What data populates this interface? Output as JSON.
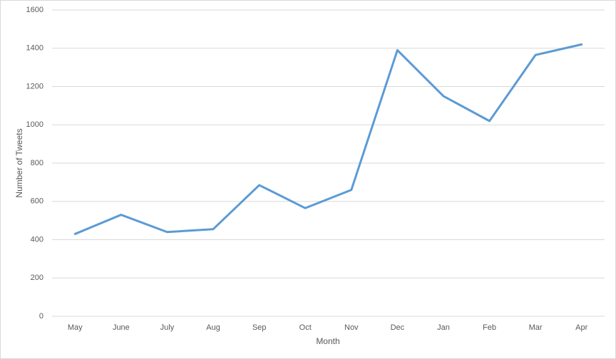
{
  "chart_data": {
    "type": "line",
    "x_label": "Month",
    "y_label": "Number of Tweets",
    "categories": [
      "May",
      "June",
      "July",
      "Aug",
      "Sep",
      "Oct",
      "Nov",
      "Dec",
      "Jan",
      "Feb",
      "Mar",
      "Apr"
    ],
    "series": [
      {
        "name": "Number of Tweets",
        "color": "#5b9bd5",
        "values": [
          430,
          530,
          440,
          455,
          685,
          565,
          660,
          1390,
          1150,
          1020,
          1365,
          1420
        ]
      }
    ],
    "ylim": [
      0,
      1600
    ],
    "yticks": [
      0,
      200,
      400,
      600,
      800,
      1000,
      1200,
      1400,
      1600
    ],
    "grid": true
  }
}
